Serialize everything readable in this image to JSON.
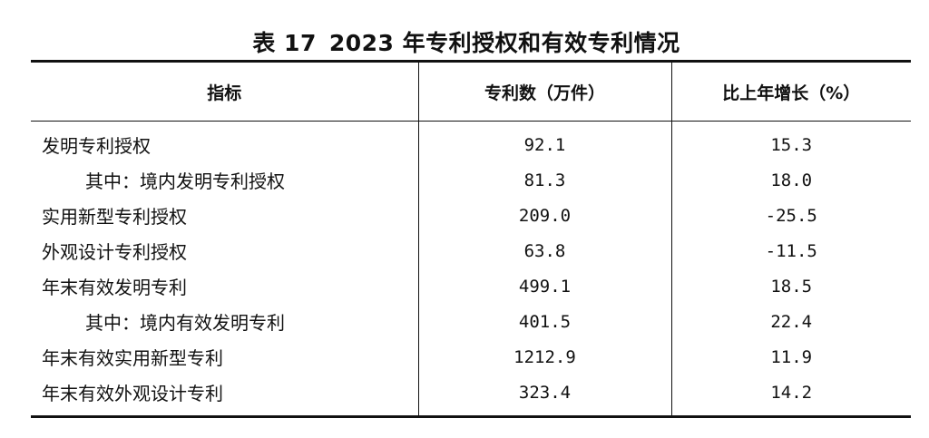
{
  "title": {
    "label": "表 17",
    "text": "2023 年专利授权和有效专利情况"
  },
  "table": {
    "headers": [
      "指标",
      "专利数（万件）",
      "比上年增长（%）"
    ],
    "rows": [
      {
        "name": "发明专利授权",
        "count": "92.1",
        "growth": "15.3"
      },
      {
        "name": "其中：境内发明专利授权",
        "count": "81.3",
        "growth": "18.0"
      },
      {
        "name": "实用新型专利授权",
        "count": "209.0",
        "growth": "-25.5"
      },
      {
        "name": "外观设计专利授权",
        "count": "63.8",
        "growth": "-11.5"
      },
      {
        "name": "年末有效发明专利",
        "count": "499.1",
        "growth": "18.5"
      },
      {
        "name": "其中：境内有效发明专利",
        "count": "401.5",
        "growth": "22.4"
      },
      {
        "name": "年末有效实用新型专利",
        "count": "1212.9",
        "growth": "11.9"
      },
      {
        "name": "年末有效外观设计专利",
        "count": "323.4",
        "growth": "14.2"
      }
    ]
  }
}
